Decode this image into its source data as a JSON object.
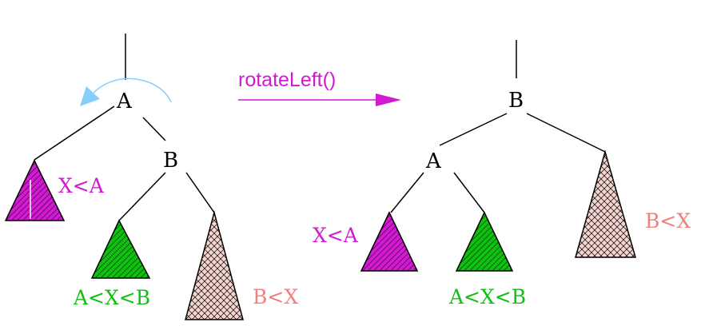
{
  "colors": {
    "magenta": "#d21ad2",
    "green": "#10c010",
    "salmon": "#f08080",
    "lightblue": "#87cefa",
    "pink_fill": "#f5d5d0"
  },
  "operation": {
    "label": "rotateLeft()"
  },
  "before": {
    "node_a": "A",
    "node_b": "B",
    "subtree_left_label": "X<A",
    "subtree_middle_label": "A<X<B",
    "subtree_right_label": "B<X"
  },
  "after": {
    "node_b": "B",
    "node_a": "A",
    "subtree_left_label": "X<A",
    "subtree_middle_label": "A<X<B",
    "subtree_right_label": "B<X"
  }
}
